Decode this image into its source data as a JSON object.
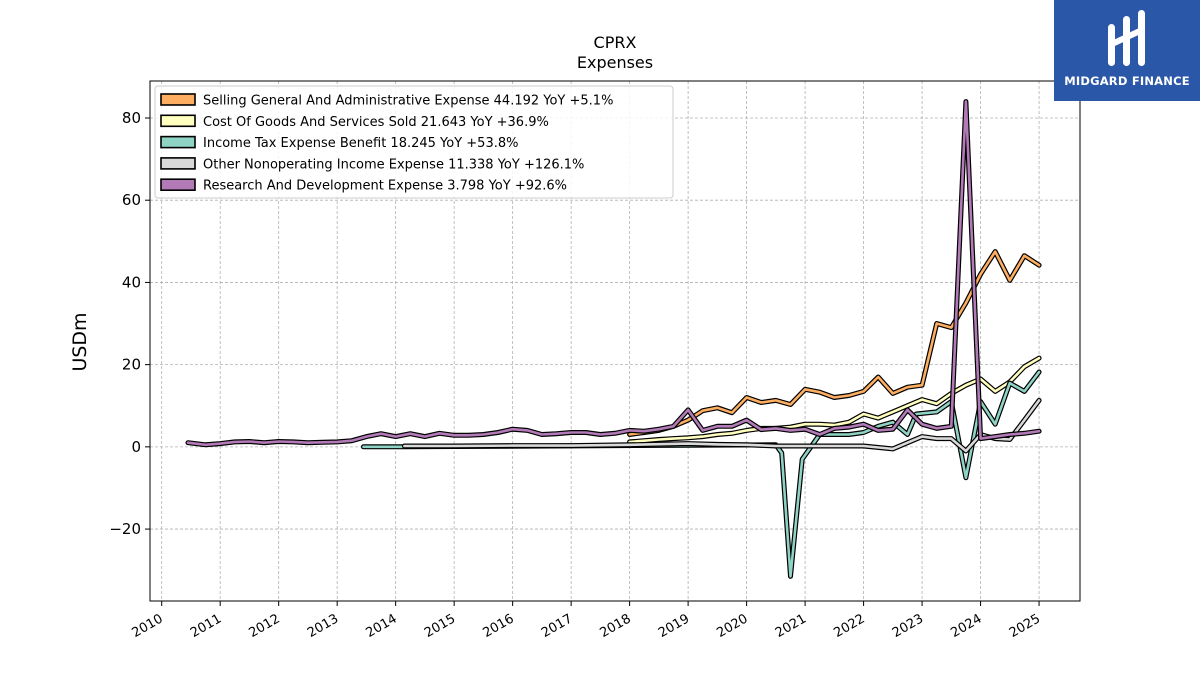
{
  "logo": {
    "text": "MIDGARD FINANCE",
    "icon": "midgard-logo-icon",
    "color": "#2b57a8"
  },
  "chart_data": {
    "type": "line",
    "title": "CPRX",
    "subtitle": "Expenses",
    "ylabel": "USDm",
    "xlabel": "",
    "xlim": [
      2009.8,
      2025.7
    ],
    "ylim": [
      -37.5,
      89
    ],
    "yticks": [
      -20,
      0,
      20,
      40,
      60,
      80
    ],
    "ytick_labels": [
      "−20",
      "0",
      "20",
      "40",
      "60",
      "80"
    ],
    "xticks": [
      2010,
      2011,
      2012,
      2013,
      2014,
      2015,
      2016,
      2017,
      2018,
      2019,
      2020,
      2021,
      2022,
      2023,
      2024,
      2025
    ],
    "grid": true,
    "legend_position": "top-left",
    "series": [
      {
        "name": "Selling General And Administrative Expense",
        "legend": "Selling General And Administrative Expense  44.192 YoY +5.1%",
        "color": "#fdae61",
        "points": [
          [
            2018.0,
            3.0
          ],
          [
            2018.25,
            3.5
          ],
          [
            2018.5,
            4.0
          ],
          [
            2018.75,
            5.0
          ],
          [
            2019.0,
            6.5
          ],
          [
            2019.25,
            8.8
          ],
          [
            2019.5,
            9.5
          ],
          [
            2019.75,
            8.3
          ],
          [
            2020.0,
            12.0
          ],
          [
            2020.25,
            10.8
          ],
          [
            2020.5,
            11.3
          ],
          [
            2020.75,
            10.3
          ],
          [
            2021.0,
            14.0
          ],
          [
            2021.25,
            13.3
          ],
          [
            2021.5,
            12.0
          ],
          [
            2021.75,
            12.5
          ],
          [
            2022.0,
            13.5
          ],
          [
            2022.25,
            17.0
          ],
          [
            2022.5,
            13.0
          ],
          [
            2022.75,
            14.5
          ],
          [
            2023.0,
            15.0
          ],
          [
            2023.25,
            30.0
          ],
          [
            2023.5,
            29.0
          ],
          [
            2023.75,
            35.0
          ],
          [
            2024.0,
            42.0
          ],
          [
            2024.25,
            47.5
          ],
          [
            2024.5,
            40.5
          ],
          [
            2024.75,
            46.5
          ],
          [
            2025.0,
            44.2
          ]
        ]
      },
      {
        "name": "Cost Of Goods And Services Sold",
        "legend": "Cost Of Goods And Services Sold  21.643 YoY +36.9%",
        "color": "#ffffbf",
        "points": [
          [
            2018.0,
            1.2
          ],
          [
            2018.25,
            1.5
          ],
          [
            2018.5,
            1.8
          ],
          [
            2018.75,
            2.0
          ],
          [
            2019.0,
            2.2
          ],
          [
            2019.25,
            2.5
          ],
          [
            2019.5,
            3.0
          ],
          [
            2019.75,
            3.3
          ],
          [
            2020.0,
            4.0
          ],
          [
            2020.25,
            4.5
          ],
          [
            2020.5,
            4.5
          ],
          [
            2020.75,
            4.8
          ],
          [
            2021.0,
            5.5
          ],
          [
            2021.25,
            5.5
          ],
          [
            2021.5,
            5.3
          ],
          [
            2021.75,
            6.0
          ],
          [
            2022.0,
            8.0
          ],
          [
            2022.25,
            7.0
          ],
          [
            2022.5,
            8.5
          ],
          [
            2022.75,
            10.0
          ],
          [
            2023.0,
            11.5
          ],
          [
            2023.25,
            10.5
          ],
          [
            2023.5,
            13.0
          ],
          [
            2023.75,
            15.0
          ],
          [
            2024.0,
            16.5
          ],
          [
            2024.25,
            13.5
          ],
          [
            2024.5,
            15.8
          ],
          [
            2024.75,
            19.5
          ],
          [
            2025.0,
            21.6
          ]
        ]
      },
      {
        "name": "Income Tax Expense Benefit",
        "legend": "Income Tax Expense Benefit  18.245 YoY +53.8%",
        "color": "#8fd3c5",
        "points": [
          [
            2013.45,
            0.0
          ],
          [
            2014.15,
            0.0
          ],
          [
            2020.5,
            0.5
          ],
          [
            2020.6,
            -1.5
          ],
          [
            2020.75,
            -31.5
          ],
          [
            2020.95,
            -3.0
          ],
          [
            2021.25,
            3.0
          ],
          [
            2021.5,
            3.0
          ],
          [
            2021.75,
            3.0
          ],
          [
            2022.0,
            3.5
          ],
          [
            2022.25,
            5.0
          ],
          [
            2022.5,
            6.0
          ],
          [
            2022.75,
            3.0
          ],
          [
            2022.9,
            8.0
          ],
          [
            2023.25,
            8.5
          ],
          [
            2023.5,
            11.0
          ],
          [
            2023.75,
            -7.5
          ],
          [
            2024.0,
            11.0
          ],
          [
            2024.25,
            5.5
          ],
          [
            2024.5,
            15.5
          ],
          [
            2024.75,
            13.5
          ],
          [
            2025.0,
            18.2
          ]
        ]
      },
      {
        "name": "Other Nonoperating Income Expense",
        "legend": "Other Nonoperating Income Expense  11.338 YoY +126.1%",
        "color": "#d9d9d9",
        "points": [
          [
            2014.15,
            0.2
          ],
          [
            2015.0,
            0.2
          ],
          [
            2016.0,
            0.3
          ],
          [
            2017.0,
            0.3
          ],
          [
            2018.0,
            0.5
          ],
          [
            2019.0,
            0.8
          ],
          [
            2019.5,
            0.6
          ],
          [
            2020.0,
            0.5
          ],
          [
            2020.5,
            0.2
          ],
          [
            2021.0,
            0.2
          ],
          [
            2021.5,
            0.2
          ],
          [
            2022.0,
            0.2
          ],
          [
            2022.5,
            -0.5
          ],
          [
            2022.75,
            1.0
          ],
          [
            2023.0,
            2.5
          ],
          [
            2023.25,
            2.0
          ],
          [
            2023.5,
            2.0
          ],
          [
            2023.75,
            -1.0
          ],
          [
            2024.0,
            3.0
          ],
          [
            2024.25,
            2.0
          ],
          [
            2024.5,
            1.8
          ],
          [
            2024.75,
            6.5
          ],
          [
            2025.0,
            11.3
          ]
        ]
      },
      {
        "name": "Research And Development Expense",
        "legend": "Research And Development Expense  3.798 YoY +92.6%",
        "color": "#b27ab7",
        "points": [
          [
            2010.45,
            1.0
          ],
          [
            2010.75,
            0.5
          ],
          [
            2011.0,
            0.8
          ],
          [
            2011.25,
            1.2
          ],
          [
            2011.5,
            1.3
          ],
          [
            2011.75,
            1.0
          ],
          [
            2012.0,
            1.3
          ],
          [
            2012.25,
            1.2
          ],
          [
            2012.5,
            1.0
          ],
          [
            2012.75,
            1.1
          ],
          [
            2013.0,
            1.2
          ],
          [
            2013.25,
            1.5
          ],
          [
            2013.5,
            2.5
          ],
          [
            2013.75,
            3.2
          ],
          [
            2014.0,
            2.5
          ],
          [
            2014.25,
            3.2
          ],
          [
            2014.5,
            2.5
          ],
          [
            2014.75,
            3.3
          ],
          [
            2015.0,
            2.8
          ],
          [
            2015.25,
            2.8
          ],
          [
            2015.5,
            3.0
          ],
          [
            2015.75,
            3.5
          ],
          [
            2016.0,
            4.3
          ],
          [
            2016.25,
            4.0
          ],
          [
            2016.5,
            3.0
          ],
          [
            2016.75,
            3.2
          ],
          [
            2017.0,
            3.5
          ],
          [
            2017.25,
            3.5
          ],
          [
            2017.5,
            3.0
          ],
          [
            2017.75,
            3.3
          ],
          [
            2018.0,
            4.0
          ],
          [
            2018.25,
            3.8
          ],
          [
            2018.5,
            4.3
          ],
          [
            2018.75,
            5.0
          ],
          [
            2019.0,
            9.0
          ],
          [
            2019.25,
            4.0
          ],
          [
            2019.5,
            5.0
          ],
          [
            2019.75,
            5.0
          ],
          [
            2020.0,
            6.5
          ],
          [
            2020.25,
            4.2
          ],
          [
            2020.5,
            4.5
          ],
          [
            2020.75,
            4.0
          ],
          [
            2021.0,
            4.3
          ],
          [
            2021.25,
            3.0
          ],
          [
            2021.5,
            4.5
          ],
          [
            2021.75,
            4.8
          ],
          [
            2022.0,
            5.5
          ],
          [
            2022.25,
            4.0
          ],
          [
            2022.5,
            4.3
          ],
          [
            2022.75,
            9.0
          ],
          [
            2023.0,
            5.5
          ],
          [
            2023.25,
            4.5
          ],
          [
            2023.5,
            5.0
          ],
          [
            2023.75,
            84.0
          ],
          [
            2024.0,
            2.0
          ],
          [
            2024.25,
            2.5
          ],
          [
            2024.5,
            3.0
          ],
          [
            2024.75,
            3.3
          ],
          [
            2025.0,
            3.8
          ]
        ]
      }
    ]
  }
}
